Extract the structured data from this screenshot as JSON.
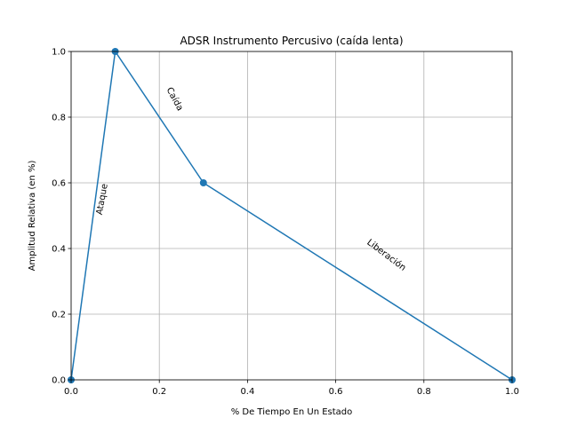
{
  "chart_data": {
    "type": "line",
    "title": "ADSR Instrumento Percusivo (caída lenta)",
    "xlabel": "% De Tiempo En Un Estado",
    "ylabel": "Amplitud Relativa (en %)",
    "xlim": [
      0.0,
      1.0
    ],
    "ylim": [
      0.0,
      1.0
    ],
    "xticks": [
      0.0,
      0.2,
      0.4,
      0.6,
      0.8,
      1.0
    ],
    "yticks": [
      0.0,
      0.2,
      0.4,
      0.6,
      0.8,
      1.0
    ],
    "xtick_labels": [
      "0.0",
      "0.2",
      "0.4",
      "0.6",
      "0.8",
      "1.0"
    ],
    "ytick_labels": [
      "0.0",
      "0.2",
      "0.4",
      "0.6",
      "0.8",
      "1.0"
    ],
    "grid": true,
    "color": "#1f77b4",
    "series": [
      {
        "x": [
          0.0,
          0.1,
          0.3,
          1.0
        ],
        "y": [
          0.0,
          1.0,
          0.6,
          0.0
        ]
      }
    ],
    "annotations": [
      {
        "text": "Ataque",
        "x": 0.07,
        "y": 0.55,
        "rotation": -80
      },
      {
        "text": "Caída",
        "x": 0.235,
        "y": 0.855,
        "rotation": 62
      },
      {
        "text": "Liberación",
        "x": 0.715,
        "y": 0.38,
        "rotation": 37
      }
    ]
  }
}
